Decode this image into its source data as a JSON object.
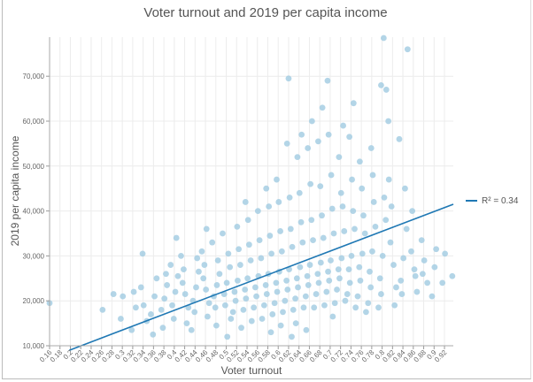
{
  "chart_data": {
    "type": "scatter",
    "title": "Voter turnout and 2019 per capita income",
    "xlabel": "Voter turnout",
    "ylabel": "2019 per capita income",
    "xlim": [
      0.16,
      0.937
    ],
    "ylim": [
      10000,
      78700
    ],
    "xticks": [
      "0.16",
      "0.18",
      "0.2",
      "0.22",
      "0.24",
      "0.26",
      "0.28",
      "0.3",
      "0.32",
      "0.34",
      "0.36",
      "0.38",
      "0.4",
      "0.42",
      "0.44",
      "0.46",
      "0.48",
      "0.5",
      "0.52",
      "0.54",
      "0.56",
      "0.58",
      "0.6",
      "0.62",
      "0.64",
      "0.66",
      "0.68",
      "0.7",
      "0.72",
      "0.74",
      "0.76",
      "0.78",
      "0.8",
      "0.82",
      "0.84",
      "0.86",
      "0.88",
      "0.9",
      "0.92"
    ],
    "yticks": [
      "10,000",
      "20,000",
      "30,000",
      "40,000",
      "50,000",
      "60,000",
      "70,000"
    ],
    "grid": true,
    "point_color": "#a6cee3",
    "trendline": {
      "label": "R² = 0.34",
      "color": "#1f78b4",
      "from": [
        0.198,
        9000
      ],
      "to": [
        0.937,
        41500
      ]
    },
    "legend_position": "right",
    "points": [
      [
        0.16,
        19500
      ],
      [
        0.262,
        18000
      ],
      [
        0.283,
        21500
      ],
      [
        0.301,
        21000
      ],
      [
        0.297,
        16000
      ],
      [
        0.322,
        22000
      ],
      [
        0.318,
        13500
      ],
      [
        0.326,
        18500
      ],
      [
        0.341,
        19000
      ],
      [
        0.336,
        23000
      ],
      [
        0.347,
        15500
      ],
      [
        0.339,
        30500
      ],
      [
        0.362,
        21000
      ],
      [
        0.355,
        17000
      ],
      [
        0.366,
        25000
      ],
      [
        0.359,
        12500
      ],
      [
        0.381,
        20500
      ],
      [
        0.375,
        18000
      ],
      [
        0.386,
        23500
      ],
      [
        0.378,
        14000
      ],
      [
        0.384,
        26000
      ],
      [
        0.402,
        22000
      ],
      [
        0.396,
        19000
      ],
      [
        0.407,
        25500
      ],
      [
        0.399,
        16000
      ],
      [
        0.404,
        34000
      ],
      [
        0.393,
        28000
      ],
      [
        0.421,
        21500
      ],
      [
        0.416,
        24000
      ],
      [
        0.427,
        18500
      ],
      [
        0.418,
        27000
      ],
      [
        0.424,
        15000
      ],
      [
        0.413,
        30000
      ],
      [
        0.442,
        23000
      ],
      [
        0.436,
        20000
      ],
      [
        0.447,
        26500
      ],
      [
        0.439,
        17500
      ],
      [
        0.444,
        29500
      ],
      [
        0.433,
        13500
      ],
      [
        0.461,
        22500
      ],
      [
        0.456,
        25000
      ],
      [
        0.467,
        19500
      ],
      [
        0.458,
        28000
      ],
      [
        0.464,
        16500
      ],
      [
        0.453,
        31000
      ],
      [
        0.462,
        36000
      ],
      [
        0.482,
        23500
      ],
      [
        0.476,
        21000
      ],
      [
        0.487,
        26000
      ],
      [
        0.479,
        18500
      ],
      [
        0.484,
        29000
      ],
      [
        0.473,
        33000
      ],
      [
        0.481,
        14500
      ],
      [
        0.501,
        24000
      ],
      [
        0.496,
        21500
      ],
      [
        0.507,
        27500
      ],
      [
        0.498,
        19000
      ],
      [
        0.504,
        30500
      ],
      [
        0.493,
        35000
      ],
      [
        0.509,
        16000
      ],
      [
        0.502,
        12000
      ],
      [
        0.522,
        24500
      ],
      [
        0.516,
        22000
      ],
      [
        0.527,
        28000
      ],
      [
        0.518,
        20000
      ],
      [
        0.524,
        31500
      ],
      [
        0.513,
        17500
      ],
      [
        0.521,
        36500
      ],
      [
        0.529,
        14000
      ],
      [
        0.541,
        25000
      ],
      [
        0.536,
        22500
      ],
      [
        0.547,
        29000
      ],
      [
        0.538,
        20500
      ],
      [
        0.544,
        32500
      ],
      [
        0.533,
        18000
      ],
      [
        0.542,
        38000
      ],
      [
        0.549,
        15500
      ],
      [
        0.537,
        42000
      ],
      [
        0.562,
        25500
      ],
      [
        0.556,
        23000
      ],
      [
        0.567,
        29500
      ],
      [
        0.558,
        21000
      ],
      [
        0.564,
        33500
      ],
      [
        0.553,
        18500
      ],
      [
        0.561,
        40000
      ],
      [
        0.569,
        16000
      ],
      [
        0.581,
        26000
      ],
      [
        0.576,
        23500
      ],
      [
        0.587,
        30500
      ],
      [
        0.578,
        21500
      ],
      [
        0.584,
        34500
      ],
      [
        0.573,
        19000
      ],
      [
        0.582,
        41000
      ],
      [
        0.589,
        17000
      ],
      [
        0.577,
        45000
      ],
      [
        0.586,
        13000
      ],
      [
        0.602,
        26500
      ],
      [
        0.596,
        24000
      ],
      [
        0.607,
        31000
      ],
      [
        0.598,
        22000
      ],
      [
        0.604,
        35500
      ],
      [
        0.593,
        19500
      ],
      [
        0.601,
        42000
      ],
      [
        0.609,
        17500
      ],
      [
        0.597,
        47000
      ],
      [
        0.605,
        14500
      ],
      [
        0.621,
        27000
      ],
      [
        0.616,
        24500
      ],
      [
        0.627,
        32000
      ],
      [
        0.618,
        22500
      ],
      [
        0.624,
        36000
      ],
      [
        0.613,
        20000
      ],
      [
        0.622,
        43000
      ],
      [
        0.629,
        18000
      ],
      [
        0.617,
        55000
      ],
      [
        0.62,
        69500
      ],
      [
        0.626,
        12000
      ],
      [
        0.642,
        27500
      ],
      [
        0.636,
        25000
      ],
      [
        0.647,
        33000
      ],
      [
        0.638,
        23000
      ],
      [
        0.644,
        37500
      ],
      [
        0.633,
        20500
      ],
      [
        0.641,
        44000
      ],
      [
        0.649,
        18500
      ],
      [
        0.637,
        52000
      ],
      [
        0.645,
        57000
      ],
      [
        0.634,
        15000
      ],
      [
        0.661,
        28000
      ],
      [
        0.656,
        25500
      ],
      [
        0.667,
        33500
      ],
      [
        0.658,
        23500
      ],
      [
        0.664,
        38000
      ],
      [
        0.653,
        21000
      ],
      [
        0.662,
        46000
      ],
      [
        0.669,
        18500
      ],
      [
        0.657,
        54000
      ],
      [
        0.665,
        60000
      ],
      [
        0.654,
        13500
      ],
      [
        0.682,
        28500
      ],
      [
        0.676,
        26000
      ],
      [
        0.687,
        34000
      ],
      [
        0.678,
        24000
      ],
      [
        0.684,
        39000
      ],
      [
        0.673,
        21500
      ],
      [
        0.681,
        45500
      ],
      [
        0.689,
        19000
      ],
      [
        0.677,
        55500
      ],
      [
        0.685,
        63000
      ],
      [
        0.695,
        69000
      ],
      [
        0.701,
        29000
      ],
      [
        0.696,
        26500
      ],
      [
        0.707,
        35000
      ],
      [
        0.698,
        24500
      ],
      [
        0.704,
        40500
      ],
      [
        0.693,
        22000
      ],
      [
        0.702,
        48000
      ],
      [
        0.709,
        19500
      ],
      [
        0.697,
        57000
      ],
      [
        0.705,
        16500
      ],
      [
        0.722,
        29500
      ],
      [
        0.716,
        27000
      ],
      [
        0.727,
        35500
      ],
      [
        0.718,
        25000
      ],
      [
        0.724,
        41000
      ],
      [
        0.713,
        22500
      ],
      [
        0.721,
        44000
      ],
      [
        0.729,
        20000
      ],
      [
        0.717,
        52000
      ],
      [
        0.725,
        59000
      ],
      [
        0.741,
        30000
      ],
      [
        0.736,
        27000
      ],
      [
        0.747,
        36000
      ],
      [
        0.738,
        24000
      ],
      [
        0.744,
        40000
      ],
      [
        0.733,
        21500
      ],
      [
        0.742,
        47000
      ],
      [
        0.749,
        18500
      ],
      [
        0.737,
        56500
      ],
      [
        0.745,
        64000
      ],
      [
        0.762,
        30500
      ],
      [
        0.756,
        27500
      ],
      [
        0.767,
        35000
      ],
      [
        0.758,
        24500
      ],
      [
        0.764,
        39000
      ],
      [
        0.753,
        21000
      ],
      [
        0.761,
        45000
      ],
      [
        0.769,
        17500
      ],
      [
        0.757,
        51000
      ],
      [
        0.781,
        31000
      ],
      [
        0.776,
        26500
      ],
      [
        0.787,
        36500
      ],
      [
        0.778,
        23000
      ],
      [
        0.784,
        42000
      ],
      [
        0.773,
        19500
      ],
      [
        0.782,
        48000
      ],
      [
        0.779,
        54000
      ],
      [
        0.801,
        30000
      ],
      [
        0.796,
        25000
      ],
      [
        0.807,
        38000
      ],
      [
        0.798,
        21500
      ],
      [
        0.804,
        43000
      ],
      [
        0.793,
        18500
      ],
      [
        0.798,
        68000
      ],
      [
        0.803,
        78500
      ],
      [
        0.812,
        60000
      ],
      [
        0.822,
        28000
      ],
      [
        0.816,
        33000
      ],
      [
        0.827,
        23000
      ],
      [
        0.818,
        41000
      ],
      [
        0.824,
        19000
      ],
      [
        0.813,
        47000
      ],
      [
        0.808,
        67000
      ],
      [
        0.841,
        29500
      ],
      [
        0.836,
        24500
      ],
      [
        0.847,
        36000
      ],
      [
        0.838,
        21500
      ],
      [
        0.844,
        45000
      ],
      [
        0.833,
        56000
      ],
      [
        0.849,
        76000
      ],
      [
        0.862,
        27000
      ],
      [
        0.856,
        31000
      ],
      [
        0.867,
        22000
      ],
      [
        0.858,
        40000
      ],
      [
        0.864,
        25500
      ],
      [
        0.881,
        29000
      ],
      [
        0.876,
        33500
      ],
      [
        0.887,
        24000
      ],
      [
        0.878,
        26000
      ],
      [
        0.901,
        27500
      ],
      [
        0.896,
        21000
      ],
      [
        0.904,
        31500
      ],
      [
        0.921,
        30500
      ],
      [
        0.916,
        24000
      ],
      [
        0.935,
        25500
      ]
    ]
  }
}
